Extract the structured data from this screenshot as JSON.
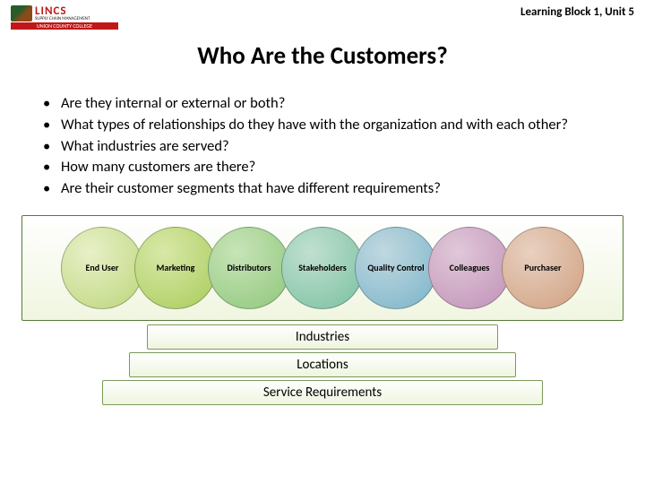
{
  "header": {
    "logo_main": "LINCS",
    "logo_sub": "SUPPLY CHAIN MANAGEMENT",
    "logo_bar": "UNION COUNTY COLLEGE",
    "breadcrumb": "Learning Block 1, Unit 5"
  },
  "title": "Who Are the Customers?",
  "bullets": [
    "Are they internal or external or both?",
    "What types of relationships do they have with the organization and with each other?",
    "What industries are served?",
    "How many customers are there?",
    "Are their customer segments that have different requirements?"
  ],
  "circles": [
    {
      "label": "End User",
      "bg": "radial-gradient(circle at 35% 30%, #e8f0c8, #bcd67a)"
    },
    {
      "label": "Marketing",
      "bg": "radial-gradient(circle at 35% 30%, #d8e8a8, #a8cc5a)"
    },
    {
      "label": "Distributors",
      "bg": "radial-gradient(circle at 35% 30%, #c8e4b8, #8ec77a)"
    },
    {
      "label": "Stakeholders",
      "bg": "radial-gradient(circle at 35% 30%, #c0e0d0, #7ac0a0)"
    },
    {
      "label": "Quality Control",
      "bg": "radial-gradient(circle at 35% 30%, #c0d8e0, #7ab4c8)"
    },
    {
      "label": "Colleagues",
      "bg": "radial-gradient(circle at 35% 30%, #e0c8d8, #c090b8)"
    },
    {
      "label": "Purchaser",
      "bg": "radial-gradient(circle at 35% 30%, #e8d0c0, #d0a080)"
    }
  ],
  "bars": [
    "Industries",
    "Locations",
    "Service Requirements"
  ],
  "styling": {
    "title_fontsize": 27,
    "bullet_fontsize": 16.5,
    "circle_label_fontsize": 10,
    "bar_fontsize": 15,
    "circle_diameter": 92,
    "circle_overlap": 10,
    "box_border_color": "#5a7a3a",
    "box_bg_gradient": [
      "#ffffff",
      "#f0f6e0"
    ],
    "bar_border_color": "#7a9a5a",
    "page_bg": "#ffffff"
  }
}
